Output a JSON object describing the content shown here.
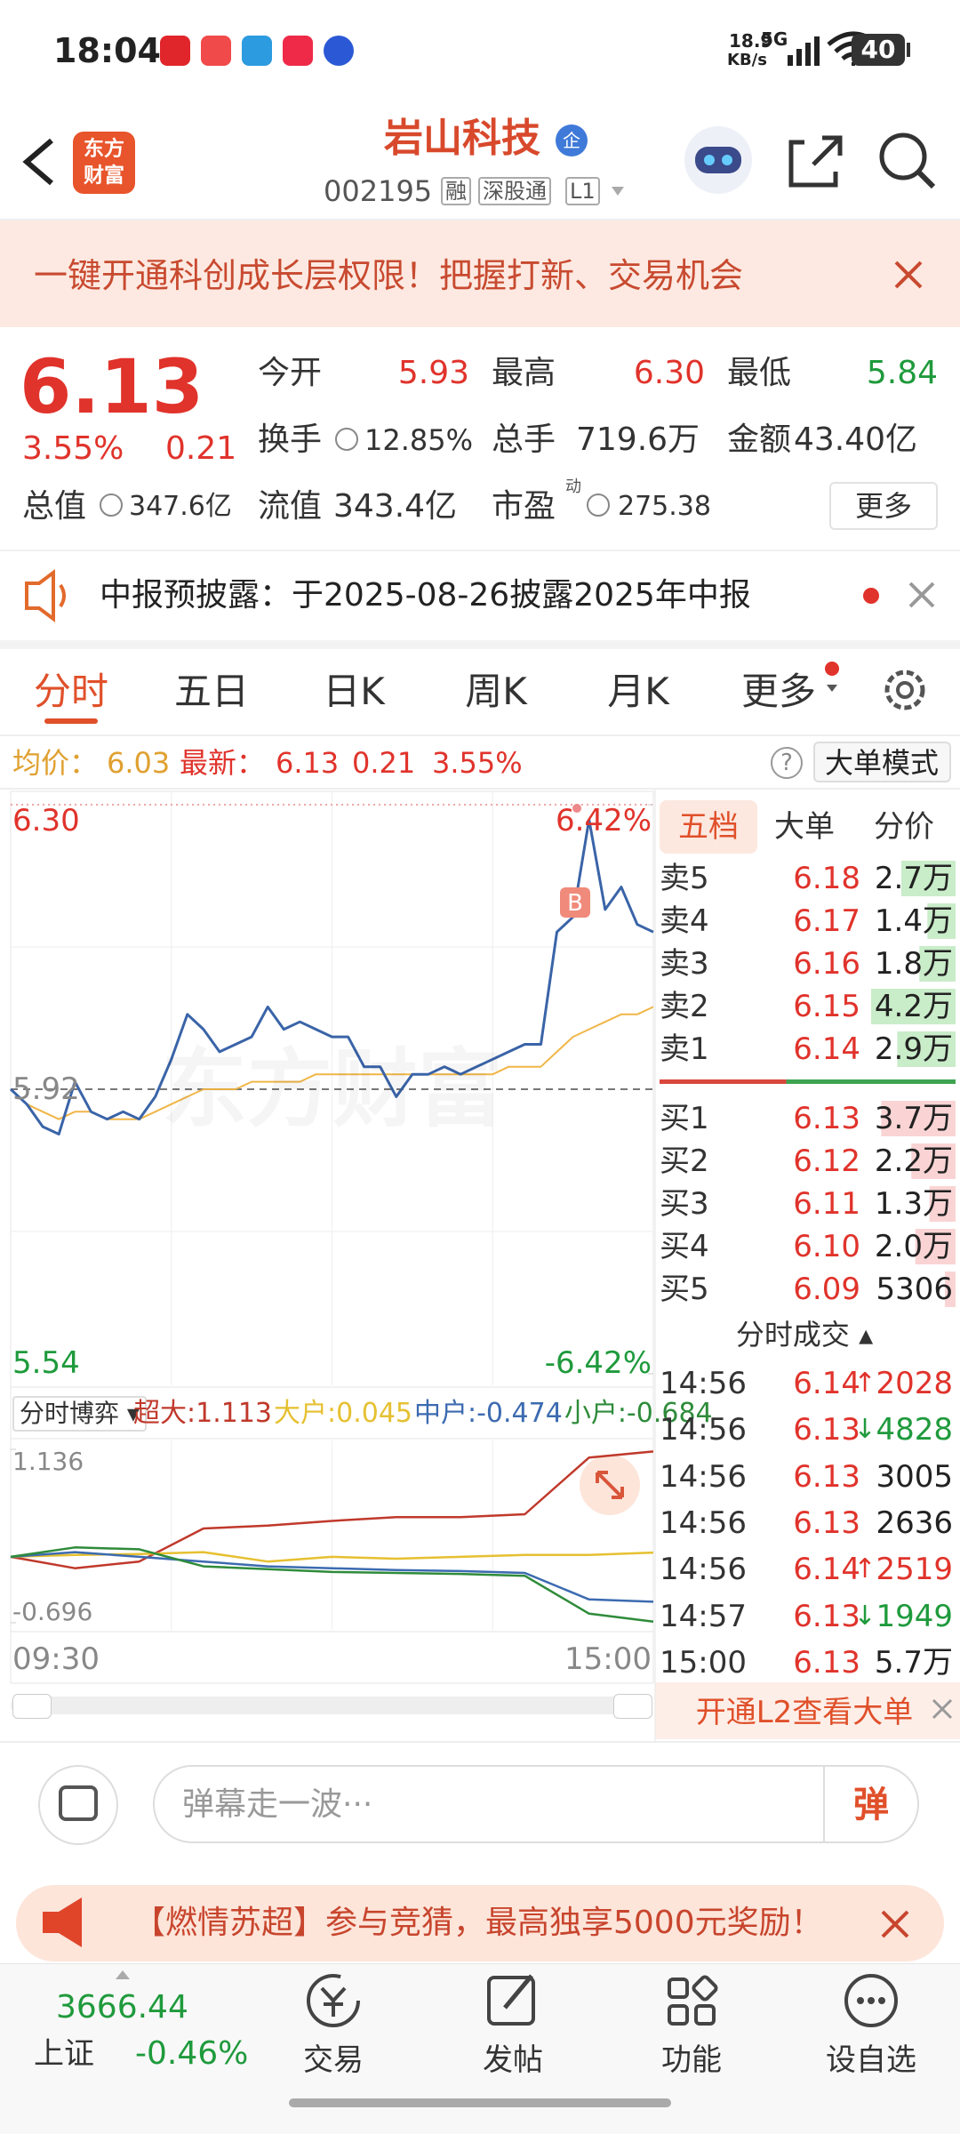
{
  "status_bar": {
    "time": "18:04",
    "net_speed": "18.9",
    "net_unit": "KB/s",
    "network": "5G",
    "battery": "40"
  },
  "header": {
    "logo_top": "东方",
    "logo_bottom": "财富",
    "title": "岩山科技",
    "badge": "企",
    "code": "002195",
    "tags": [
      "融",
      "深股通",
      "L1"
    ]
  },
  "banner": {
    "text": "一键开通科创成长层权限！把握打新、交易机会"
  },
  "quote": {
    "price": "6.13",
    "change_pct": "3.55%",
    "change": "0.21",
    "open": {
      "label": "今开",
      "value": "5.93"
    },
    "high": {
      "label": "最高",
      "value": "6.30"
    },
    "low": {
      "label": "最低",
      "value": "5.84"
    },
    "turnover": {
      "label": "换手",
      "value": "12.85%"
    },
    "volume": {
      "label": "总手",
      "value": "719.6万"
    },
    "amount": {
      "label": "金额",
      "value": "43.40亿"
    },
    "market_cap": {
      "label": "总值",
      "value": "347.6亿"
    },
    "float_cap": {
      "label": "流值",
      "value": "343.4亿"
    },
    "pe": {
      "label": "市盈",
      "superscript": "动",
      "value": "275.38"
    },
    "more": "更多"
  },
  "notice": {
    "text": "中报预披露：于2025-08-26披露2025年中报"
  },
  "tabs": [
    "分时",
    "五日",
    "日K",
    "周K",
    "月K",
    "更多"
  ],
  "info_bar": {
    "avg_label": "均价：",
    "avg": "6.03",
    "latest_label": "最新：",
    "latest": "6.13",
    "change": "0.21",
    "change_pct": "3.55%",
    "help": "?",
    "mode_button": "大单模式"
  },
  "intraday_chart": {
    "ylim": [
      5.54,
      6.3
    ],
    "yticks": [
      {
        "value": 6.3,
        "label": "6.30"
      },
      5.92,
      5.54
    ],
    "y2lim": [
      -6.42,
      6.42
    ],
    "y2ticks": [
      {
        "value": 6.42,
        "label": "6.42%"
      },
      {
        "value": -6.42,
        "label": "-6.42%"
      }
    ],
    "time_labels": [
      "09:30",
      "15:00"
    ],
    "watermark": "东方财富",
    "marker": "B",
    "price_color": "#3a64a8",
    "avg_color": "#f0b648",
    "price": [
      5.92,
      5.9,
      5.87,
      5.86,
      5.93,
      5.89,
      5.88,
      5.89,
      5.88,
      5.91,
      5.96,
      6.02,
      6.0,
      5.97,
      5.98,
      5.99,
      6.03,
      6.0,
      6.01,
      6.0,
      5.99,
      5.99,
      5.95,
      5.95,
      5.91,
      5.94,
      5.94,
      5.95,
      5.94,
      5.95,
      5.96,
      5.97,
      5.98,
      5.98,
      6.13,
      6.15,
      6.28,
      6.16,
      6.19,
      6.14,
      6.13
    ],
    "avg_price": [
      5.92,
      5.9,
      5.89,
      5.88,
      5.89,
      5.89,
      5.88,
      5.88,
      5.88,
      5.89,
      5.9,
      5.91,
      5.92,
      5.92,
      5.92,
      5.93,
      5.93,
      5.93,
      5.93,
      5.94,
      5.94,
      5.94,
      5.94,
      5.94,
      5.94,
      5.94,
      5.94,
      5.94,
      5.94,
      5.94,
      5.94,
      5.95,
      5.95,
      5.95,
      5.97,
      5.99,
      6.0,
      6.01,
      6.02,
      6.02,
      6.03
    ]
  },
  "flow_chart": {
    "selector": "分时博弈",
    "ylim": [
      -0.696,
      1.136
    ],
    "yticks": [
      1.136,
      -0.696
    ],
    "series": [
      {
        "legend": "超大:1.113",
        "color": "#c0392b",
        "values": [
          0,
          -0.12,
          -0.05,
          0.3,
          0.33,
          0.38,
          0.42,
          0.42,
          0.45,
          1.05,
          1.113
        ]
      },
      {
        "legend": "大户:0.045",
        "color": "#e6c031",
        "values": [
          0,
          0.02,
          0.03,
          0.05,
          -0.05,
          0.0,
          -0.02,
          0.0,
          0.02,
          0.02,
          0.045
        ]
      },
      {
        "legend": "中户:-0.474",
        "color": "#3c6bb0",
        "values": [
          0,
          0.05,
          0.0,
          -0.05,
          -0.1,
          -0.12,
          -0.14,
          -0.15,
          -0.17,
          -0.45,
          -0.474
        ]
      },
      {
        "legend": "小户:-0.684",
        "color": "#2e8b3a",
        "values": [
          0,
          0.1,
          0.08,
          -0.1,
          -0.13,
          -0.16,
          -0.17,
          -0.18,
          -0.2,
          -0.6,
          -0.684
        ]
      }
    ]
  },
  "order_book": {
    "tabs": [
      "五档",
      "大单",
      "分价"
    ],
    "asks": {
      "labels": [
        "卖5",
        "卖4",
        "卖3",
        "卖2",
        "卖1"
      ],
      "prices": [
        "6.18",
        "6.17",
        "6.16",
        "6.15",
        "6.14"
      ],
      "volumes": [
        27000,
        14000,
        18000,
        42000,
        29000
      ],
      "volume_labels": [
        "2.7万",
        "1.4万",
        "1.8万",
        "4.2万",
        "2.9万"
      ]
    },
    "bids": {
      "labels": [
        "买1",
        "买2",
        "买3",
        "买4",
        "买5"
      ],
      "prices": [
        "6.13",
        "6.12",
        "6.11",
        "6.10",
        "6.09"
      ],
      "volumes": [
        37000,
        22000,
        13000,
        20000,
        5306
      ],
      "volume_labels": [
        "3.7万",
        "2.2万",
        "1.3万",
        "2.0万",
        "5306"
      ]
    },
    "trades_title": "分时成交",
    "trades": [
      {
        "time": "14:56",
        "price": "6.14",
        "flag": "↑",
        "volume": "2028",
        "side": "up"
      },
      {
        "time": "14:56",
        "price": "6.13",
        "flag": "↓",
        "volume": "4828",
        "side": "down"
      },
      {
        "time": "14:56",
        "price": "6.13",
        "volume": "3005",
        "side": "flat"
      },
      {
        "time": "14:56",
        "price": "6.13",
        "volume": "2636",
        "side": "flat"
      },
      {
        "time": "14:56",
        "price": "6.14",
        "flag": "↑",
        "volume": "2519",
        "side": "up"
      },
      {
        "time": "14:57",
        "price": "6.13",
        "flag": "↓",
        "volume": "1949",
        "side": "down"
      },
      {
        "time": "15:00",
        "price": "6.13",
        "volume": "5.7万",
        "side": "flat"
      }
    ],
    "l2_button": "开通L2查看大单"
  },
  "comment_bar": {
    "placeholder": "弹幕走一波···",
    "button": "弹"
  },
  "promo": {
    "text": "【燃情苏超】参与竞猜，最高独享5000元奖励！"
  },
  "bottom_nav": {
    "index_value": "3666.44",
    "index_name": "上证",
    "index_change": "-0.46%",
    "items": [
      "交易",
      "发帖",
      "功能",
      "设自选"
    ]
  }
}
